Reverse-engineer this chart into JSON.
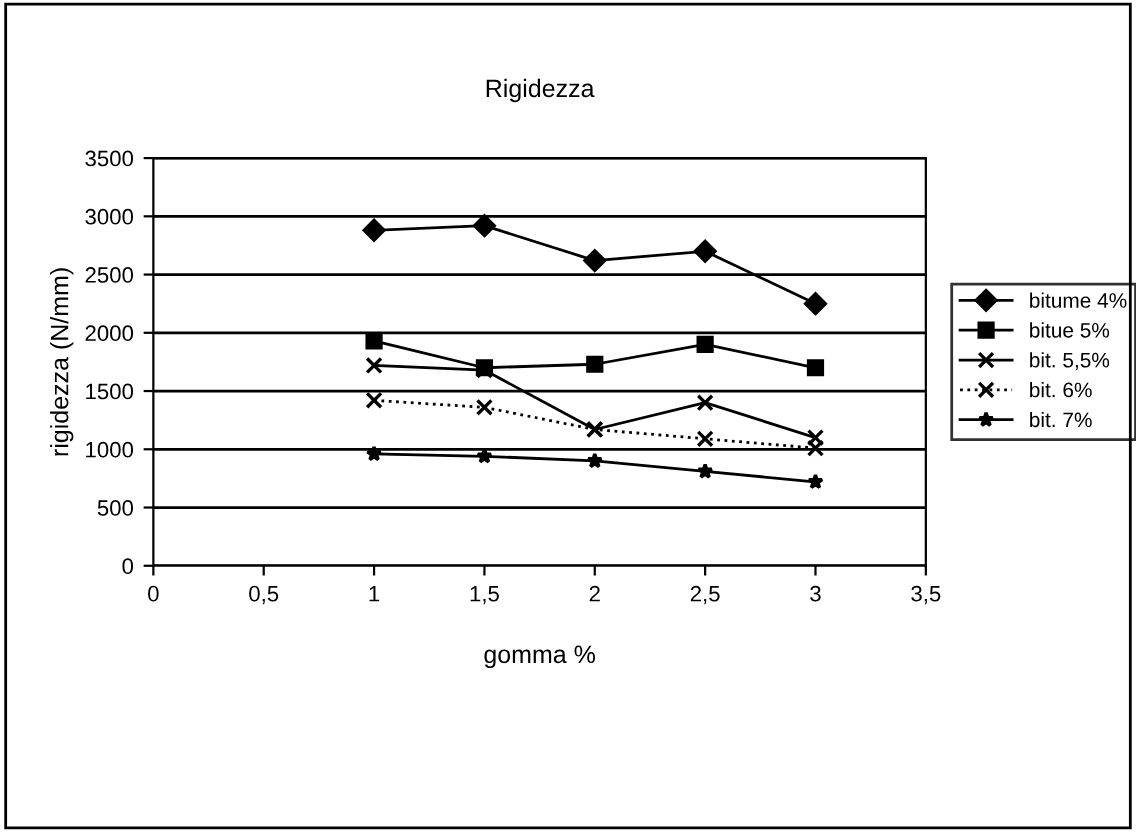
{
  "chart_data": {
    "type": "line",
    "title": "Rigidezza",
    "xlabel": "gomma %",
    "ylabel": "rigidezza (N/mm)",
    "x": [
      1,
      1.5,
      2,
      2.5,
      3
    ],
    "xlim": [
      0,
      3.5
    ],
    "xticks": [
      0,
      {
        "value": 0.5,
        "label": "0,5"
      },
      1,
      {
        "value": 1.5,
        "label": "1,5"
      },
      2,
      {
        "value": 2.5,
        "label": "2,5"
      },
      3,
      {
        "value": 3.5,
        "label": "3,5"
      }
    ],
    "ylim": [
      0,
      3500
    ],
    "yticks": [
      0,
      500,
      1000,
      1500,
      2000,
      2500,
      3000,
      3500
    ],
    "grid": "y",
    "legend": "right",
    "series": [
      {
        "name": "bitume 4%",
        "color": "#000000",
        "marker": "diamond",
        "line_style": "solid",
        "values": [
          2880,
          2920,
          2620,
          2700,
          2250
        ]
      },
      {
        "name": "bitue 5%",
        "color": "#000000",
        "marker": "square",
        "line_style": "solid",
        "values": [
          1930,
          1700,
          1730,
          1900,
          1700
        ]
      },
      {
        "name": "bit. 5,5%",
        "color": "#000000",
        "marker": "cross",
        "line_style": "solid",
        "values": [
          1720,
          1680,
          1170,
          1400,
          1100
        ]
      },
      {
        "name": "bit. 6%",
        "color": "#000000",
        "marker": "cross",
        "line_style": "dotted",
        "values": [
          1420,
          1360,
          1170,
          1090,
          1010
        ]
      },
      {
        "name": "bit. 7%",
        "color": "#000000",
        "marker": "star",
        "line_style": "solid",
        "values": [
          960,
          940,
          900,
          810,
          720
        ]
      }
    ]
  }
}
